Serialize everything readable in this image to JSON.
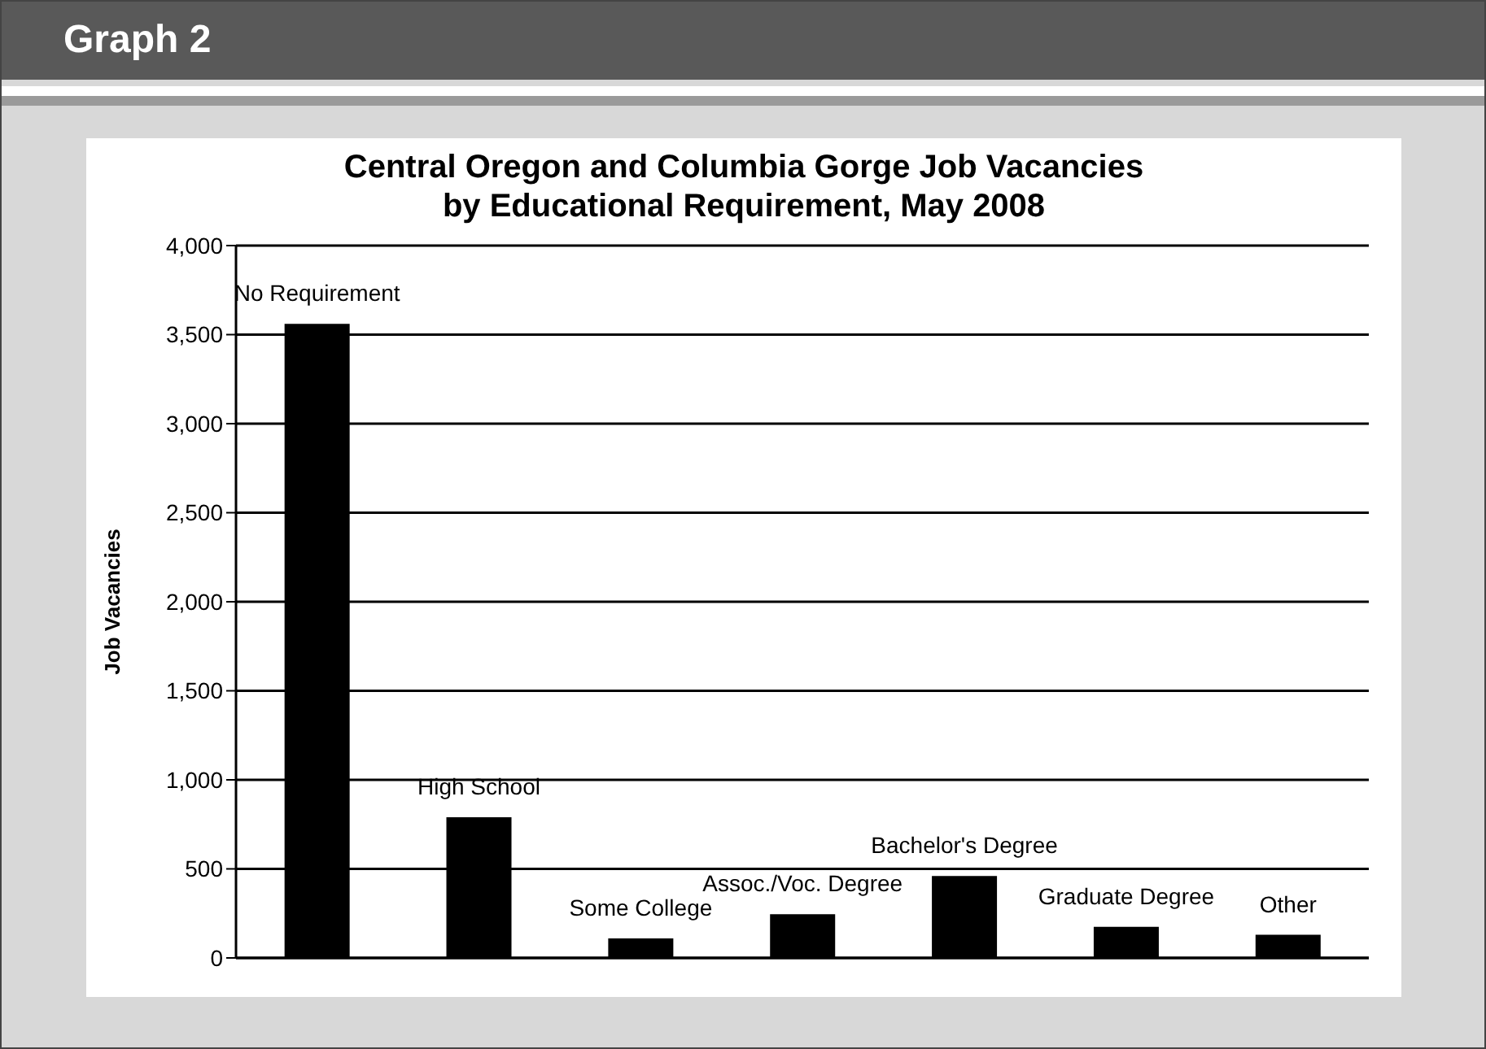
{
  "chart_data": {
    "type": "bar",
    "title": "Central Oregon and Columbia Gorge Job Vacancies\nby Educational Requirement, May 2008",
    "annotations": [
      "Graph 2"
    ],
    "ylabel": "Job Vacancies",
    "categories": [
      "No Requirement",
      "High School",
      "Some College",
      "Assoc./Voc. Degree",
      "Bachelor's Degree",
      "Graduate Degree",
      "Other"
    ],
    "values": [
      3560,
      790,
      110,
      245,
      460,
      175,
      130
    ],
    "color": "#000000",
    "ylim": [
      0,
      4000
    ],
    "yticks": [
      0,
      {
        "value": 500,
        "label": "500"
      },
      {
        "value": 1000,
        "label": "1,000"
      },
      {
        "value": 1500,
        "label": "1,500"
      },
      {
        "value": 2000,
        "label": "2,000"
      },
      {
        "value": 2500,
        "label": "2,500"
      },
      {
        "value": 3000,
        "label": "3,000"
      },
      {
        "value": 3500,
        "label": "3,500"
      },
      {
        "value": 4000,
        "label": "4,000"
      }
    ],
    "grid": "y"
  }
}
